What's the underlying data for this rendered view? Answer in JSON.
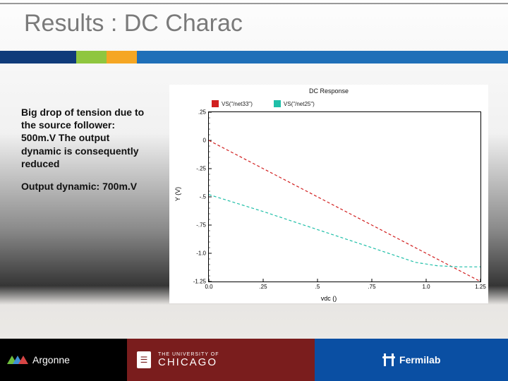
{
  "title": "Results : DC Charac",
  "body": {
    "p1": "Big drop of tension due to the source follower: 500m.V\nThe output dynamic is consequently reduced",
    "p2": "Output dynamic: 700m.V"
  },
  "stripe_colors": [
    "#0f3b7a",
    "#8fc63f",
    "#f5a623",
    "#1f6fb8"
  ],
  "chart": {
    "type": "line",
    "title": "DC Response",
    "x_label": "vdc ()",
    "y_label": "Y (V)",
    "xlim": [
      0.0,
      1.25
    ],
    "ylim": [
      -1.25,
      0.25
    ],
    "xticks": [
      0.0,
      0.25,
      0.5,
      0.75,
      1.0,
      1.25
    ],
    "xtick_labels": [
      "0.0",
      ".25",
      ".5",
      ".75",
      "1.0",
      "1.25"
    ],
    "yticks": [
      0.25,
      0,
      -0.25,
      -0.5,
      -0.75,
      -1.0,
      -1.25
    ],
    "ytick_labels": [
      ".25",
      "0",
      "-.25",
      "-.5",
      "-.75",
      "-1.0",
      "-1.25"
    ],
    "background_color": "#ffffff",
    "axis_color": "#000000",
    "tick_fontsize": 8,
    "label_fontsize": 9,
    "title_fontsize": 9,
    "line_width": 1.2,
    "series": [
      {
        "name": "VS(\"/net33\")",
        "color": "#d11f1f",
        "dash": "4 3",
        "points": [
          [
            0.0,
            0.0
          ],
          [
            0.25,
            -0.25
          ],
          [
            0.5,
            -0.5
          ],
          [
            0.75,
            -0.75
          ],
          [
            1.0,
            -1.0
          ],
          [
            1.25,
            -1.25
          ]
        ]
      },
      {
        "name": "VS(\"/net25\")",
        "color": "#1fbfa8",
        "dash": "4 3",
        "points": [
          [
            0.0,
            -0.48
          ],
          [
            0.25,
            -0.63
          ],
          [
            0.5,
            -0.79
          ],
          [
            0.75,
            -0.95
          ],
          [
            0.95,
            -1.08
          ],
          [
            1.05,
            -1.11
          ],
          [
            1.15,
            -1.12
          ],
          [
            1.25,
            -1.12
          ]
        ]
      }
    ]
  },
  "footer": {
    "argonne": "Argonne",
    "chicago_small": "THE UNIVERSITY OF",
    "chicago_big": "CHICAGO",
    "fermi": "Fermilab"
  }
}
